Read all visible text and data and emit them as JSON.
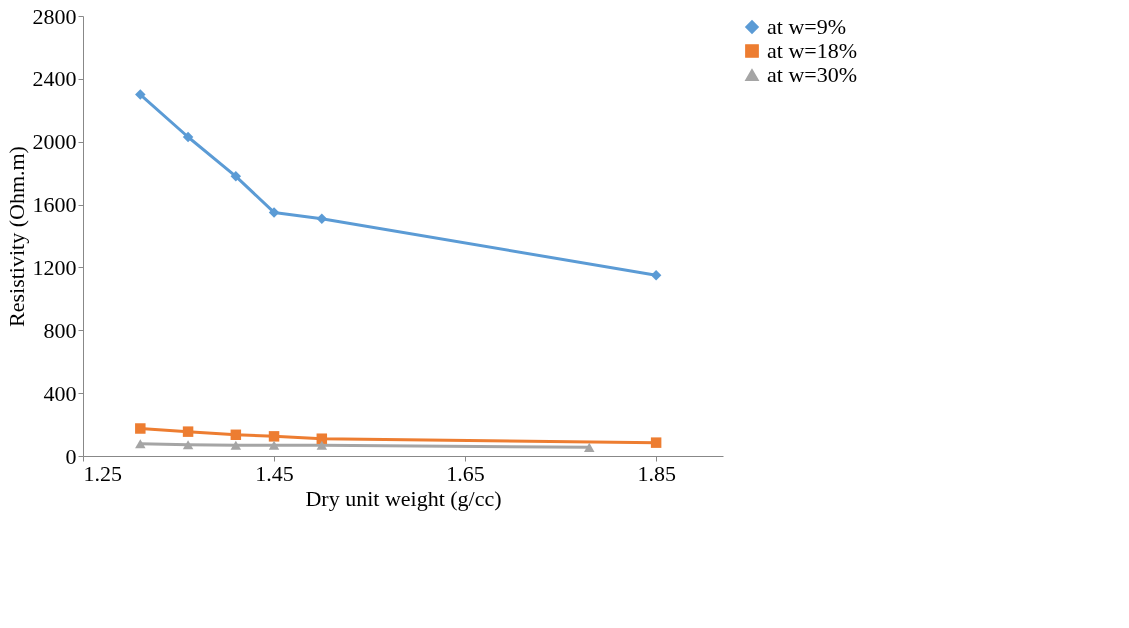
{
  "chart_data": {
    "type": "line",
    "xlabel": "Dry unit weight (g/cc)",
    "ylabel": "Resistivity (Ohm.m)",
    "xlim": [
      1.25,
      1.92
    ],
    "xticks": [
      1.25,
      1.45,
      1.65,
      1.85
    ],
    "ylim": [
      0,
      2800
    ],
    "yticks": [
      0,
      400,
      800,
      1200,
      1600,
      2000,
      2400,
      2800
    ],
    "grid": false,
    "legend": "right",
    "series": [
      {
        "name": "at w=9%",
        "color": "#5b9bd5",
        "marker": "diamond",
        "x": [
          1.31,
          1.36,
          1.41,
          1.45,
          1.5,
          1.85
        ],
        "values": [
          2300,
          2030,
          1780,
          1550,
          1510,
          1150
        ]
      },
      {
        "name": "at w=18%",
        "color": "#ed7d31",
        "marker": "square",
        "x": [
          1.31,
          1.36,
          1.41,
          1.45,
          1.5,
          1.85
        ],
        "values": [
          175,
          155,
          135,
          125,
          110,
          85
        ]
      },
      {
        "name": "at w=30%",
        "color": "#a5a5a5",
        "marker": "triangle",
        "x": [
          1.31,
          1.36,
          1.41,
          1.45,
          1.5,
          1.78
        ],
        "values": [
          78,
          72,
          68,
          68,
          68,
          55
        ]
      }
    ]
  }
}
